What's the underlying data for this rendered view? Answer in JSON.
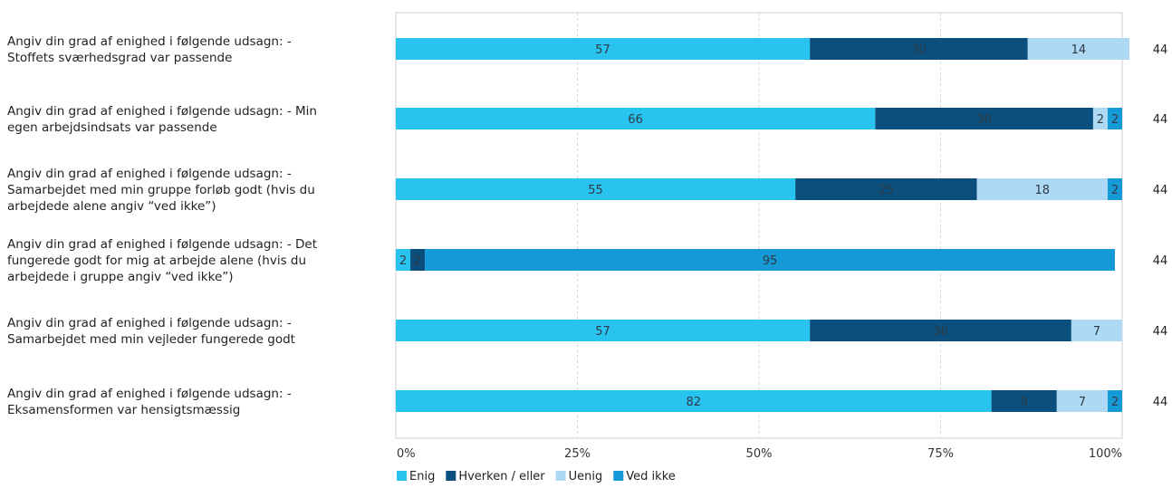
{
  "chart_data": {
    "type": "bar",
    "orientation": "horizontal",
    "stacked": true,
    "percent": true,
    "categories": [
      [
        "Angiv din grad af enighed i følgende udsagn: -",
        "Stoffets sværhedsgrad var passende"
      ],
      [
        "Angiv din grad af enighed i følgende udsagn: - Min",
        "egen arbejdsindsats var passende"
      ],
      [
        "Angiv din grad af enighed i følgende udsagn: -",
        "Samarbejdet med min gruppe forløb godt (hvis du",
        "arbejdede alene angiv “ved ikke”)"
      ],
      [
        "Angiv din grad af enighed i følgende udsagn: - Det",
        "fungerede godt for mig at arbejde alene (hvis du",
        "arbejdede i gruppe angiv “ved ikke”)"
      ],
      [
        "Angiv din grad af enighed i følgende udsagn: -",
        "Samarbejdet med min vejleder fungerede godt"
      ],
      [
        "Angiv din grad af enighed i følgende udsagn: -",
        "Eksamensformen var hensigtsmæssig"
      ]
    ],
    "series": [
      {
        "name": "Enig",
        "color": "#29c3f0",
        "values": [
          57,
          66,
          55,
          2,
          57,
          82
        ]
      },
      {
        "name": "Hverken / eller",
        "color": "#0a4f7e",
        "values": [
          30,
          30,
          25,
          2,
          36,
          9
        ]
      },
      {
        "name": "Uenig",
        "color": "#aed9f4",
        "values": [
          14,
          2,
          18,
          0,
          7,
          7
        ]
      },
      {
        "name": "Ved ikke",
        "color": "#159ad8",
        "values": [
          0,
          2,
          2,
          95,
          0,
          2
        ]
      }
    ],
    "n": [
      44,
      44,
      44,
      44,
      44,
      44
    ],
    "xticks": [
      "0%",
      "25%",
      "50%",
      "75%",
      "100%"
    ],
    "xlim": [
      0,
      100
    ],
    "grid": true,
    "legend": "bottom"
  }
}
